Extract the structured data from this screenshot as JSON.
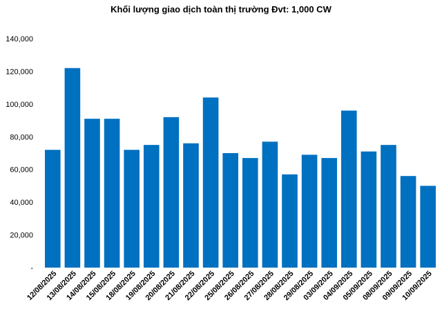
{
  "chart_data": {
    "type": "bar",
    "title": "Khối lượng giao dịch toàn thị trường Đvt: 1,000 CW",
    "xlabel": "",
    "ylabel": "",
    "ylim": [
      0,
      140000
    ],
    "yticks": [
      "-",
      "20,000",
      "40,000",
      "60,000",
      "80,000",
      "100,000",
      "120,000",
      "140,000"
    ],
    "grid": false,
    "color": "#0070c0",
    "categories": [
      "12/08/2025",
      "13/08/2025",
      "14/08/2025",
      "15/08/2025",
      "18/08/2025",
      "19/08/2025",
      "20/08/2025",
      "21/08/2025",
      "22/08/2025",
      "25/08/2025",
      "26/08/2025",
      "27/08/2025",
      "28/08/2025",
      "29/08/2025",
      "03/09/2025",
      "04/09/2025",
      "05/09/2025",
      "08/09/2025",
      "09/09/2025",
      "10/09/2025"
    ],
    "values": [
      72000,
      122000,
      91000,
      91000,
      72000,
      75000,
      92000,
      76000,
      104000,
      70000,
      67000,
      77000,
      57000,
      69000,
      67000,
      96000,
      71000,
      75000,
      56000,
      50000
    ]
  }
}
